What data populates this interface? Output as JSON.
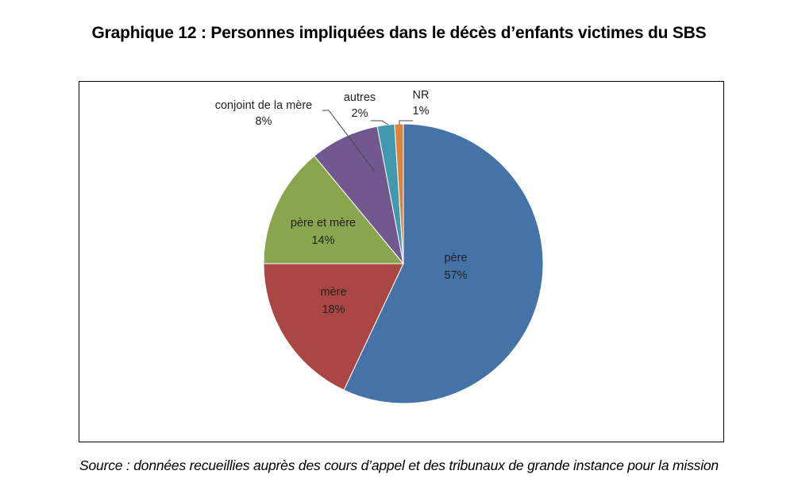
{
  "title": "Graphique 12 : Personnes impliquées dans le décès d’enfants victimes du SBS",
  "source": "Source : données recueillies auprès des cours d’appel et des tribunaux de grande instance pour la mission",
  "chart_data": {
    "type": "pie",
    "title": "Graphique 12 : Personnes impliquées dans le décès d’enfants victimes du SBS",
    "categories": [
      "père",
      "mère",
      "père et mère",
      "conjoint de la mère",
      "autres",
      "NR"
    ],
    "values": [
      57,
      18,
      14,
      8,
      2,
      1
    ],
    "unit": "%",
    "colors": [
      "#4572A7",
      "#AA4643",
      "#89A54E",
      "#71588F",
      "#4198AF",
      "#DB843D"
    ],
    "start_angle": "12 o'clock, clockwise",
    "legend": "none (data labels on/next to slices)"
  },
  "labels": {
    "pere": {
      "name": "père",
      "pct": "57%"
    },
    "mere": {
      "name": "mère",
      "pct": "18%"
    },
    "pere_mere": {
      "name": "père et mère",
      "pct": "14%"
    },
    "conjoint": {
      "name": "conjoint de la mère",
      "pct": "8%"
    },
    "autres": {
      "name": "autres",
      "pct": "2%"
    },
    "nr": {
      "name": "NR",
      "pct": "1%"
    }
  }
}
